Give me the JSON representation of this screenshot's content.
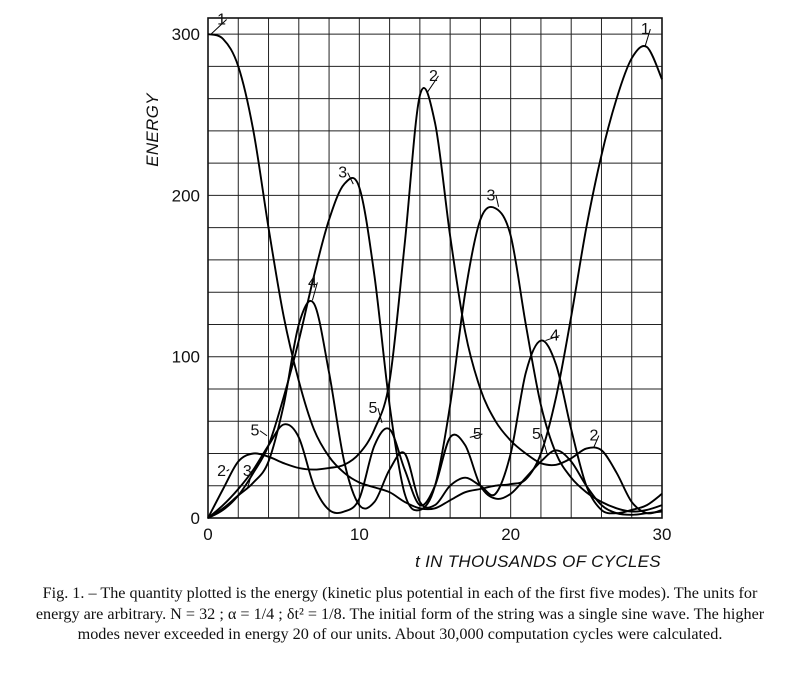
{
  "chart_data": {
    "type": "line",
    "xlabel": "t IN THOUSANDS OF CYCLES",
    "ylabel": "ENERGY",
    "xlim": [
      0,
      30
    ],
    "ylim": [
      0,
      310
    ],
    "x_ticks": [
      "0",
      "10",
      "20",
      "30"
    ],
    "y_ticks": [
      "0",
      "100",
      "200",
      "300"
    ],
    "grid": true,
    "series": [
      {
        "name": "1",
        "points": [
          [
            0,
            300
          ],
          [
            1,
            297
          ],
          [
            2,
            280
          ],
          [
            3,
            240
          ],
          [
            4,
            180
          ],
          [
            5,
            125
          ],
          [
            6,
            85
          ],
          [
            7,
            55
          ],
          [
            8,
            38
          ],
          [
            9,
            28
          ],
          [
            10,
            22
          ],
          [
            11,
            19
          ],
          [
            12,
            16
          ],
          [
            13,
            10
          ],
          [
            14,
            6
          ],
          [
            15,
            6
          ],
          [
            16,
            11
          ],
          [
            17,
            16
          ],
          [
            18,
            18
          ],
          [
            19,
            20
          ],
          [
            20,
            21
          ],
          [
            21,
            24
          ],
          [
            22,
            40
          ],
          [
            23,
            75
          ],
          [
            24,
            125
          ],
          [
            25,
            180
          ],
          [
            26,
            225
          ],
          [
            27,
            260
          ],
          [
            28,
            285
          ],
          [
            29,
            292
          ],
          [
            30,
            272
          ]
        ]
      },
      {
        "name": "2",
        "points": [
          [
            0,
            0
          ],
          [
            1,
            18
          ],
          [
            2,
            35
          ],
          [
            3,
            40
          ],
          [
            4,
            38
          ],
          [
            5,
            34
          ],
          [
            6,
            31
          ],
          [
            7,
            30
          ],
          [
            8,
            31
          ],
          [
            9,
            33
          ],
          [
            10,
            40
          ],
          [
            11,
            55
          ],
          [
            12,
            85
          ],
          [
            13,
            170
          ],
          [
            14,
            262
          ],
          [
            15,
            245
          ],
          [
            16,
            175
          ],
          [
            17,
            115
          ],
          [
            18,
            80
          ],
          [
            19,
            60
          ],
          [
            20,
            48
          ],
          [
            21,
            40
          ],
          [
            22,
            34
          ],
          [
            23,
            33
          ],
          [
            24,
            37
          ],
          [
            25,
            43
          ],
          [
            26,
            42
          ],
          [
            27,
            28
          ],
          [
            28,
            10
          ],
          [
            29,
            3
          ],
          [
            30,
            5
          ]
        ]
      },
      {
        "name": "3",
        "points": [
          [
            0,
            0
          ],
          [
            1,
            5
          ],
          [
            2,
            14
          ],
          [
            3,
            28
          ],
          [
            4,
            45
          ],
          [
            5,
            75
          ],
          [
            6,
            110
          ],
          [
            7,
            150
          ],
          [
            8,
            185
          ],
          [
            9,
            207
          ],
          [
            10,
            205
          ],
          [
            11,
            150
          ],
          [
            12,
            70
          ],
          [
            13,
            15
          ],
          [
            14,
            5
          ],
          [
            15,
            20
          ],
          [
            16,
            70
          ],
          [
            17,
            140
          ],
          [
            18,
            185
          ],
          [
            19,
            192
          ],
          [
            20,
            175
          ],
          [
            21,
            120
          ],
          [
            22,
            70
          ],
          [
            23,
            40
          ],
          [
            24,
            25
          ],
          [
            25,
            16
          ],
          [
            26,
            10
          ],
          [
            27,
            6
          ],
          [
            28,
            4
          ],
          [
            29,
            5
          ],
          [
            30,
            8
          ]
        ]
      },
      {
        "name": "4",
        "points": [
          [
            0,
            0
          ],
          [
            1,
            6
          ],
          [
            2,
            14
          ],
          [
            3,
            22
          ],
          [
            4,
            35
          ],
          [
            5,
            70
          ],
          [
            6,
            120
          ],
          [
            7,
            133
          ],
          [
            8,
            90
          ],
          [
            9,
            35
          ],
          [
            10,
            8
          ],
          [
            11,
            10
          ],
          [
            12,
            30
          ],
          [
            13,
            40
          ],
          [
            14,
            10
          ],
          [
            15,
            8
          ],
          [
            16,
            20
          ],
          [
            17,
            25
          ],
          [
            18,
            20
          ],
          [
            19,
            15
          ],
          [
            20,
            40
          ],
          [
            21,
            90
          ],
          [
            22,
            110
          ],
          [
            23,
            95
          ],
          [
            24,
            55
          ],
          [
            25,
            20
          ],
          [
            26,
            5
          ],
          [
            27,
            3
          ],
          [
            28,
            5
          ],
          [
            29,
            8
          ],
          [
            30,
            15
          ]
        ]
      },
      {
        "name": "5",
        "points": [
          [
            0,
            0
          ],
          [
            1,
            8
          ],
          [
            2,
            18
          ],
          [
            3,
            30
          ],
          [
            4,
            45
          ],
          [
            5,
            58
          ],
          [
            6,
            50
          ],
          [
            7,
            20
          ],
          [
            8,
            5
          ],
          [
            9,
            4
          ],
          [
            10,
            12
          ],
          [
            11,
            45
          ],
          [
            12,
            55
          ],
          [
            13,
            30
          ],
          [
            14,
            8
          ],
          [
            15,
            20
          ],
          [
            16,
            50
          ],
          [
            17,
            45
          ],
          [
            18,
            20
          ],
          [
            19,
            12
          ],
          [
            20,
            15
          ],
          [
            21,
            25
          ],
          [
            22,
            35
          ],
          [
            23,
            42
          ],
          [
            24,
            35
          ],
          [
            25,
            20
          ],
          [
            26,
            8
          ],
          [
            27,
            3
          ],
          [
            28,
            2
          ],
          [
            29,
            3
          ],
          [
            30,
            4
          ]
        ]
      }
    ],
    "annotations": [
      "1",
      "1",
      "2",
      "2",
      "2",
      "3",
      "3",
      "3",
      "4",
      "4",
      "5",
      "5",
      "5",
      "5"
    ]
  },
  "caption": {
    "text": "Fig. 1. – The quantity plotted is the energy (kinetic plus potential in each of the first five modes). The units for energy are arbitrary. N = 32 ; α = 1/4 ; δt² = 1/8. The initial form of the string was a single sine wave. The higher modes never exceeded in energy 20 of our units. About 30,000 computation cycles were calculated."
  }
}
